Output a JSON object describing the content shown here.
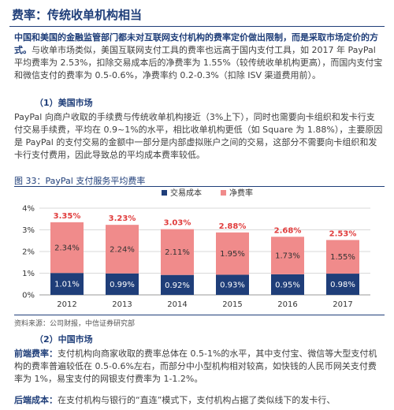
{
  "title": "费率：传统收单机构相当",
  "intro": {
    "lead": "中国和美国的金融监管部门都未对互联网支付机构的费率定价做出限制，而是采取市场定价的方式。",
    "body": "与收单市场类似，美国互联网支付工具的费率也远高于国内支付工具，如 2017 年 PayPal 平均费率为 2.53%，扣除交易成本后的净费率为 1.55%（较传统收单机构更高），而国内支付宝和微信支付的费率为 0.5-0.6%，净费率约 0.2-0.3%（扣除 ISV 渠道费用前）。"
  },
  "section1": {
    "heading": "（1）美国市场",
    "body": "PayPal 向商户收取的手续费与传统收单机构接近（3%上下），同时也需要向卡组织和发卡行支付交易手续费，平均在 0.9~1%的水平，相比收单机构更低（如 Square 为 1.88%），主要原因是 PayPal 的支付交易的金额中一部分是内部虚拟账户之间的交易，这部分不需要向卡组织和发卡行支付费用，因此导致总的平均成本费率较低。"
  },
  "figure": {
    "caption": "图 33：PayPal 支付服务平均费率",
    "source": "资料来源：公司财报，中信证券研究部"
  },
  "section2": {
    "heading": "（2）中国市场",
    "p1_lead": "前端费率：",
    "p1_body": "支付机构向商家收取的费率总体在 0.5-1%的水平，其中支付宝、微信等大型支付机构的费率普遍较低在 0.5-0.6%左右，而部分中小型机构相对较高，如快钱的人民币网关支付费率为 1%，易宝支付的网银支付费率为 1-1.2%。",
    "p2_lead": "后端成本：",
    "p2_body": "在支付机构与银行的“直连”模式下，支付机构占据了类似线下的发卡行、"
  },
  "chart_data": {
    "type": "bar",
    "stacked": true,
    "categories": [
      "2012",
      "2013",
      "2014",
      "2015",
      "2016",
      "2017"
    ],
    "series": [
      {
        "name": "交易成本",
        "color": "#1f3e79",
        "values": [
          1.01,
          0.99,
          0.92,
          0.93,
          0.95,
          0.98
        ],
        "labels": [
          "1.01%",
          "0.99%",
          "0.92%",
          "0.93%",
          "0.95%",
          "0.98%"
        ]
      },
      {
        "name": "净费率",
        "color": "#f08b8b",
        "values": [
          2.34,
          2.24,
          2.11,
          1.95,
          1.73,
          1.55
        ],
        "labels": [
          "2.34%",
          "2.24%",
          "2.11%",
          "1.95%",
          "1.73%",
          "1.55%"
        ]
      }
    ],
    "totals": [
      3.35,
      3.23,
      3.03,
      2.88,
      2.68,
      2.53
    ],
    "total_labels": [
      "3.35%",
      "3.23%",
      "3.03%",
      "2.88%",
      "2.68%",
      "2.53%"
    ],
    "total_label_color": "#e03c3c",
    "ylim": [
      0,
      4
    ],
    "yticks": [
      "0%",
      "1%",
      "2%",
      "3%",
      "4%"
    ],
    "grid": true,
    "legend_position": "top-center"
  }
}
